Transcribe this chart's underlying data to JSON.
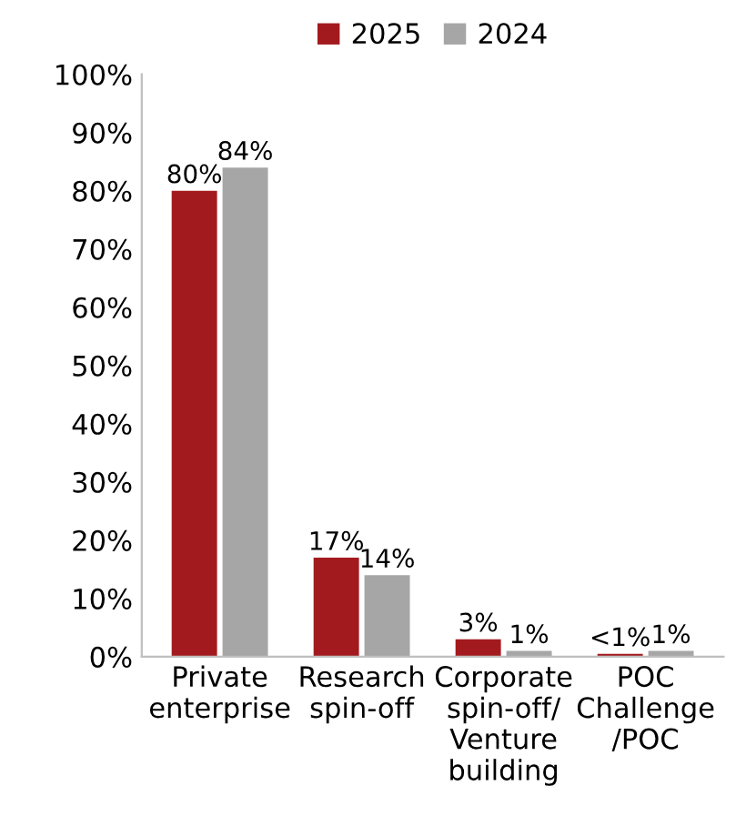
{
  "chart_data": {
    "type": "bar",
    "categories": [
      "Private\nenterprise",
      "Research\nspin-off",
      "Corporate\nspin-off/\nVenture\nbuilding",
      "POC\nChallenge\n/POC"
    ],
    "series": [
      {
        "name": "2025",
        "color": "#a31a1e",
        "values": [
          80,
          17,
          3,
          0.5
        ],
        "value_labels": [
          "80%",
          "17%",
          "3%",
          "<1%"
        ]
      },
      {
        "name": "2024",
        "color": "#a6a6a6",
        "values": [
          84,
          14,
          1,
          1
        ],
        "value_labels": [
          "84%",
          "14%",
          "1%",
          "1%"
        ]
      }
    ],
    "ylim": [
      0,
      100
    ],
    "yticks": [
      {
        "value": 0,
        "label": "0%"
      },
      {
        "value": 10,
        "label": "10%"
      },
      {
        "value": 20,
        "label": "20%"
      },
      {
        "value": 30,
        "label": "30%"
      },
      {
        "value": 40,
        "label": "40%"
      },
      {
        "value": 50,
        "label": "50%"
      },
      {
        "value": 60,
        "label": "60%"
      },
      {
        "value": 70,
        "label": "70%"
      },
      {
        "value": 80,
        "label": "80%"
      },
      {
        "value": 90,
        "label": "90%"
      },
      {
        "value": 100,
        "label": "100%"
      }
    ],
    "legend": "top",
    "grid": false
  }
}
